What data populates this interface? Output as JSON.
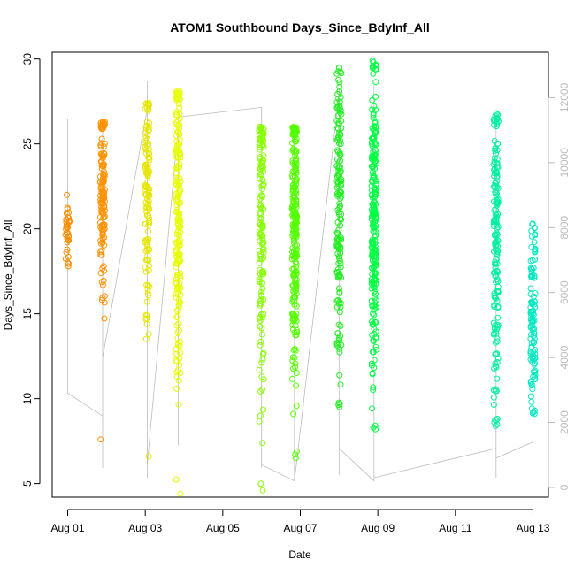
{
  "chart_data": {
    "type": "scatter",
    "title": "ATOM1 Southbound Days_Since_BdyInf_All",
    "xlabel": "Date",
    "ylabel": "Days_Since_BdyInf_All",
    "x_tick_labels": [
      "Aug 01",
      "Aug 03",
      "Aug 05",
      "Aug 07",
      "Aug 09",
      "Aug 11",
      "Aug 13"
    ],
    "x_tick_values": [
      1,
      3,
      5,
      7,
      9,
      11,
      13
    ],
    "xlim": [
      0.6,
      13.4
    ],
    "ylim": [
      4.2,
      30.4
    ],
    "y_ticks": [
      5,
      10,
      15,
      20,
      25,
      30
    ],
    "y2_ticks": [
      0,
      2000,
      4000,
      6000,
      8000,
      10000,
      12000
    ],
    "y2lim": [
      -300,
      13400
    ],
    "grid": false,
    "legend": "none",
    "clusters": [
      {
        "x": 1.0,
        "ymin": 17.8,
        "ymax": 22.0,
        "center": 20.0,
        "spread": 1.0,
        "count": 35,
        "color": "#ff8c00"
      },
      {
        "x": 1.9,
        "ymin": 7.6,
        "ymax": 26.3,
        "center": 22.0,
        "spread": 3.0,
        "count": 140,
        "color": "#ff9200"
      },
      {
        "x": 3.05,
        "ymin": 6.6,
        "ymax": 27.4,
        "center": 22.0,
        "spread": 3.5,
        "count": 130,
        "color": "#e6e600"
      },
      {
        "x": 3.85,
        "ymin": 4.4,
        "ymax": 28.1,
        "center": 20.5,
        "spread": 4.5,
        "count": 200,
        "color": "#e8ff00"
      },
      {
        "x": 6.0,
        "ymin": 4.6,
        "ymax": 26.0,
        "center": 20.0,
        "spread": 5.0,
        "count": 150,
        "color": "#88ff00"
      },
      {
        "x": 6.85,
        "ymin": 6.5,
        "ymax": 26.0,
        "center": 20.0,
        "spread": 4.5,
        "count": 260,
        "color": "#55ff00"
      },
      {
        "x": 8.0,
        "ymin": 9.5,
        "ymax": 29.5,
        "center": 20.5,
        "spread": 5.0,
        "count": 160,
        "color": "#22ee22"
      },
      {
        "x": 8.9,
        "ymin": 8.2,
        "ymax": 29.9,
        "center": 20.0,
        "spread": 5.0,
        "count": 240,
        "color": "#00ff44"
      },
      {
        "x": 12.05,
        "ymin": 8.4,
        "ymax": 26.8,
        "center": 19.5,
        "spread": 4.5,
        "count": 180,
        "color": "#00f0a0"
      },
      {
        "x": 13.0,
        "ymin": 9.1,
        "ymax": 20.3,
        "center": 14.5,
        "spread": 3.2,
        "count": 110,
        "color": "#00e8c0"
      }
    ],
    "trace": [
      [
        1.0,
        11350
      ],
      [
        1.0,
        2900
      ],
      [
        1.9,
        2200
      ],
      [
        1.9,
        11350
      ],
      [
        1.9,
        600
      ],
      [
        1.9,
        4000
      ],
      [
        3.05,
        11650
      ],
      [
        3.05,
        300
      ],
      [
        3.05,
        1600
      ],
      [
        3.05,
        8500
      ],
      [
        3.05,
        12500
      ],
      [
        3.05,
        700
      ],
      [
        3.85,
        11100
      ],
      [
        3.85,
        2200
      ],
      [
        3.85,
        9000
      ],
      [
        3.85,
        1300
      ],
      [
        3.85,
        11400
      ],
      [
        6.0,
        11700
      ],
      [
        6.0,
        600
      ],
      [
        6.0,
        2200
      ],
      [
        6.0,
        3200
      ],
      [
        6.0,
        11500
      ],
      [
        6.0,
        700
      ],
      [
        6.85,
        200
      ],
      [
        6.85,
        11000
      ],
      [
        6.85,
        3600
      ],
      [
        6.85,
        9000
      ],
      [
        6.85,
        2200
      ],
      [
        6.85,
        200
      ],
      [
        8.0,
        12100
      ],
      [
        8.0,
        400
      ],
      [
        8.0,
        3300
      ],
      [
        8.0,
        12300
      ],
      [
        8.0,
        1200
      ],
      [
        8.9,
        200
      ],
      [
        8.9,
        12400
      ],
      [
        8.9,
        1800
      ],
      [
        8.9,
        9800
      ],
      [
        8.9,
        300
      ],
      [
        12.05,
        1200
      ],
      [
        12.05,
        11200
      ],
      [
        12.05,
        300
      ],
      [
        12.05,
        900
      ],
      [
        13.0,
        1400
      ],
      [
        13.0,
        9200
      ],
      [
        13.0,
        300
      ],
      [
        13.0,
        900
      ]
    ]
  }
}
